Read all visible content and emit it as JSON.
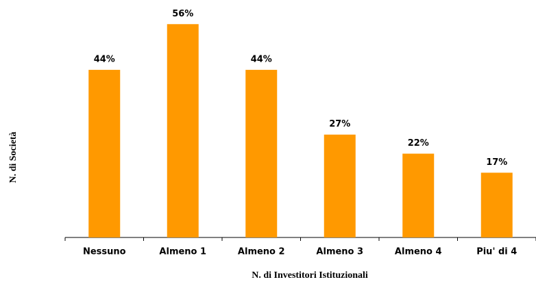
{
  "chart_data": {
    "type": "bar",
    "categories": [
      "Nessuno",
      "Almeno 1",
      "Almeno 2",
      "Almeno 3",
      "Almeno 4",
      "Piu' di 4"
    ],
    "values": [
      44,
      56,
      44,
      27,
      22,
      17
    ],
    "value_labels": [
      "44%",
      "56%",
      "44%",
      "27%",
      "22%",
      "17%"
    ],
    "color": "#ff9900",
    "ylim": [
      0,
      60
    ],
    "x_label": "N. di Investitori Istituzionali",
    "y_label": "N. di Società"
  }
}
